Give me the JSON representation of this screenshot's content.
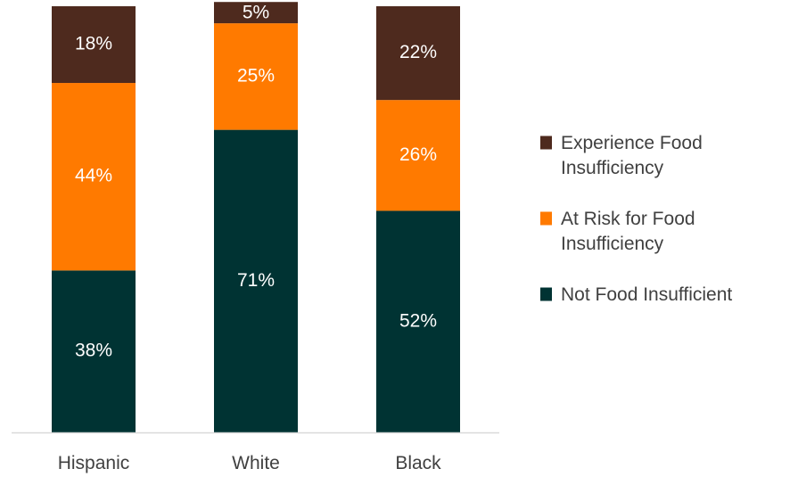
{
  "chart_data": {
    "type": "bar",
    "stacked": true,
    "categories": [
      "Hispanic",
      "White",
      "Black"
    ],
    "series": [
      {
        "name": "Not Food Insufficient",
        "values": [
          38,
          71,
          52
        ],
        "labels": [
          "38%",
          "71%",
          "52%"
        ],
        "color": "#003333"
      },
      {
        "name": "At Risk for Food Insufficiency",
        "values": [
          44,
          25,
          26
        ],
        "labels": [
          "44%",
          "25%",
          "26%"
        ],
        "color": "#FF7A00"
      },
      {
        "name": "Experience Food Insufficiency",
        "values": [
          18,
          5,
          22
        ],
        "labels": [
          "18%",
          "5%",
          "22%"
        ],
        "color": "#4E2A1E"
      }
    ],
    "legend_order": [
      2,
      1,
      0
    ],
    "legend": [
      {
        "lines": [
          "Experience Food",
          "Insufficiency"
        ]
      },
      {
        "lines": [
          "At Risk for Food",
          "Insufficiency"
        ]
      },
      {
        "lines": [
          "Not Food Insufficient"
        ]
      }
    ],
    "ylim": [
      0,
      100
    ],
    "grid": false,
    "legend_position": "right",
    "label_color": "#ffffff",
    "axis_color": "#d9d9d9",
    "text_color": "#404040"
  }
}
